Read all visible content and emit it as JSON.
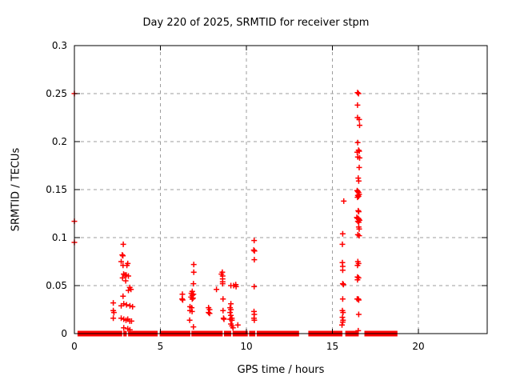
{
  "colors": {
    "marker": "#ff0000",
    "grid": "#9e9e9e",
    "axis": "#000000",
    "background": "#ffffff"
  },
  "chart_data": {
    "type": "scatter",
    "title": "Day 220 of 2025, SRMTID for receiver stpm",
    "xlabel": "GPS time / hours",
    "ylabel": "SRMTID / TECUs",
    "xlim": [
      0,
      24
    ],
    "ylim": [
      0,
      0.3
    ],
    "grid": true,
    "legend": "none",
    "marker": "plus",
    "xticks": [
      {
        "v": 0,
        "label": "0"
      },
      {
        "v": 5,
        "label": "5"
      },
      {
        "v": 10,
        "label": "10"
      },
      {
        "v": 15,
        "label": "15"
      },
      {
        "v": 20,
        "label": "20"
      }
    ],
    "yticks": [
      {
        "v": 0,
        "label": "0"
      },
      {
        "v": 0.05,
        "label": "0.05"
      },
      {
        "v": 0.1,
        "label": "0.1"
      },
      {
        "v": 0.15,
        "label": "0.15"
      },
      {
        "v": 0.2,
        "label": "0.2"
      },
      {
        "v": 0.25,
        "label": "0.25"
      },
      {
        "v": 0.3,
        "label": "0.3"
      }
    ],
    "series": [
      {
        "name": "SRMTID",
        "color": "#ff0000",
        "points": [
          [
            0,
            0.25
          ],
          [
            0,
            0.117
          ],
          [
            0,
            0.095
          ],
          [
            2.84,
            0.093
          ],
          [
            2.78,
            0.082
          ],
          [
            2.82,
            0.081
          ],
          [
            2.72,
            0.075
          ],
          [
            3.1,
            0.073
          ],
          [
            2.83,
            0.071
          ],
          [
            3.05,
            0.071
          ],
          [
            2.86,
            0.062
          ],
          [
            2.94,
            0.061
          ],
          [
            3.02,
            0.061
          ],
          [
            3.14,
            0.06
          ],
          [
            2.8,
            0.058
          ],
          [
            2.98,
            0.055
          ],
          [
            3.22,
            0.048
          ],
          [
            3.29,
            0.046
          ],
          [
            3.14,
            0.045
          ],
          [
            2.83,
            0.039
          ],
          [
            2.26,
            0.032
          ],
          [
            2.87,
            0.031
          ],
          [
            3.03,
            0.03
          ],
          [
            2.72,
            0.029
          ],
          [
            3.23,
            0.029
          ],
          [
            3.38,
            0.028
          ],
          [
            2.26,
            0.024
          ],
          [
            2.3,
            0.022
          ],
          [
            2.26,
            0.016
          ],
          [
            2.72,
            0.016
          ],
          [
            2.87,
            0.015
          ],
          [
            3.1,
            0.015
          ],
          [
            3.0,
            0.014
          ],
          [
            3.22,
            0.013
          ],
          [
            3.32,
            0.013
          ],
          [
            2.87,
            0.006
          ],
          [
            3.1,
            0.005
          ],
          [
            3.23,
            0.004
          ],
          [
            6.28,
            0.041
          ],
          [
            6.26,
            0.036
          ],
          [
            6.3,
            0.035
          ],
          [
            6.94,
            0.072
          ],
          [
            6.94,
            0.064
          ],
          [
            6.92,
            0.052
          ],
          [
            6.85,
            0.044
          ],
          [
            6.8,
            0.042
          ],
          [
            6.92,
            0.041
          ],
          [
            6.85,
            0.04
          ],
          [
            6.78,
            0.038
          ],
          [
            6.9,
            0.037
          ],
          [
            6.85,
            0.036
          ],
          [
            6.72,
            0.028
          ],
          [
            6.82,
            0.027
          ],
          [
            6.72,
            0.024
          ],
          [
            6.84,
            0.023
          ],
          [
            6.7,
            0.014
          ],
          [
            6.92,
            0.007
          ],
          [
            7.8,
            0.027
          ],
          [
            7.86,
            0.025
          ],
          [
            7.8,
            0.022
          ],
          [
            7.86,
            0.021
          ],
          [
            8.26,
            0.046
          ],
          [
            8.6,
            0.064
          ],
          [
            8.55,
            0.062
          ],
          [
            8.62,
            0.06
          ],
          [
            8.62,
            0.057
          ],
          [
            8.62,
            0.054
          ],
          [
            8.62,
            0.052
          ],
          [
            8.64,
            0.036
          ],
          [
            8.64,
            0.024
          ],
          [
            8.67,
            0.016
          ],
          [
            8.7,
            0.015
          ],
          [
            9.1,
            0.05
          ],
          [
            9.26,
            0.05
          ],
          [
            9.38,
            0.051
          ],
          [
            9.4,
            0.049
          ],
          [
            9.1,
            0.031
          ],
          [
            9.05,
            0.027
          ],
          [
            9.1,
            0.025
          ],
          [
            9.05,
            0.022
          ],
          [
            9.1,
            0.019
          ],
          [
            9.16,
            0.016
          ],
          [
            9.05,
            0.015
          ],
          [
            9.16,
            0.014
          ],
          [
            9.1,
            0.01
          ],
          [
            9.16,
            0.008
          ],
          [
            9.22,
            0.006
          ],
          [
            9.5,
            0.009
          ],
          [
            10.45,
            0.097
          ],
          [
            10.43,
            0.087
          ],
          [
            10.47,
            0.086
          ],
          [
            10.46,
            0.077
          ],
          [
            10.45,
            0.049
          ],
          [
            10.44,
            0.023
          ],
          [
            10.46,
            0.02
          ],
          [
            10.44,
            0.016
          ],
          [
            10.46,
            0.014
          ],
          [
            15.66,
            0.138
          ],
          [
            15.6,
            0.104
          ],
          [
            15.58,
            0.093
          ],
          [
            15.58,
            0.074
          ],
          [
            15.6,
            0.07
          ],
          [
            15.6,
            0.066
          ],
          [
            15.6,
            0.052
          ],
          [
            15.64,
            0.051
          ],
          [
            15.6,
            0.036
          ],
          [
            15.58,
            0.024
          ],
          [
            15.62,
            0.022
          ],
          [
            15.58,
            0.017
          ],
          [
            15.62,
            0.014
          ],
          [
            15.6,
            0.012
          ],
          [
            15.56,
            0.009
          ],
          [
            16.46,
            0.251
          ],
          [
            16.52,
            0.25
          ],
          [
            16.46,
            0.238
          ],
          [
            16.46,
            0.225
          ],
          [
            16.56,
            0.223
          ],
          [
            16.58,
            0.217
          ],
          [
            16.47,
            0.199
          ],
          [
            16.52,
            0.191
          ],
          [
            16.56,
            0.19
          ],
          [
            16.44,
            0.189
          ],
          [
            16.48,
            0.184
          ],
          [
            16.58,
            0.183
          ],
          [
            16.56,
            0.173
          ],
          [
            16.5,
            0.162
          ],
          [
            16.53,
            0.159
          ],
          [
            16.44,
            0.149
          ],
          [
            16.48,
            0.148
          ],
          [
            16.52,
            0.147
          ],
          [
            16.56,
            0.145
          ],
          [
            16.48,
            0.144
          ],
          [
            16.52,
            0.143
          ],
          [
            16.46,
            0.142
          ],
          [
            16.5,
            0.128
          ],
          [
            16.53,
            0.127
          ],
          [
            16.42,
            0.121
          ],
          [
            16.46,
            0.12
          ],
          [
            16.5,
            0.12
          ],
          [
            16.54,
            0.119
          ],
          [
            16.58,
            0.118
          ],
          [
            16.48,
            0.117
          ],
          [
            16.53,
            0.116
          ],
          [
            16.53,
            0.111
          ],
          [
            16.56,
            0.109
          ],
          [
            16.48,
            0.103
          ],
          [
            16.56,
            0.102
          ],
          [
            16.48,
            0.075
          ],
          [
            16.52,
            0.073
          ],
          [
            16.46,
            0.071
          ],
          [
            16.46,
            0.059
          ],
          [
            16.52,
            0.058
          ],
          [
            16.46,
            0.056
          ],
          [
            16.44,
            0.036
          ],
          [
            16.5,
            0.036
          ],
          [
            16.53,
            0.035
          ],
          [
            16.53,
            0.02
          ],
          [
            16.5,
            0.003
          ]
        ],
        "baseline_band": {
          "y": 0,
          "segments": [
            [
              0.18,
              2.78
            ],
            [
              2.84,
              3.04
            ],
            [
              3.12,
              4.84
            ],
            [
              4.96,
              6.74
            ],
            [
              6.8,
              8.62
            ],
            [
              8.7,
              9.12
            ],
            [
              9.2,
              10.08
            ],
            [
              10.16,
              10.52
            ],
            [
              10.6,
              13.06
            ],
            [
              13.6,
              15.58
            ],
            [
              15.75,
              16.53
            ],
            [
              16.86,
              18.78
            ]
          ]
        }
      }
    ]
  }
}
